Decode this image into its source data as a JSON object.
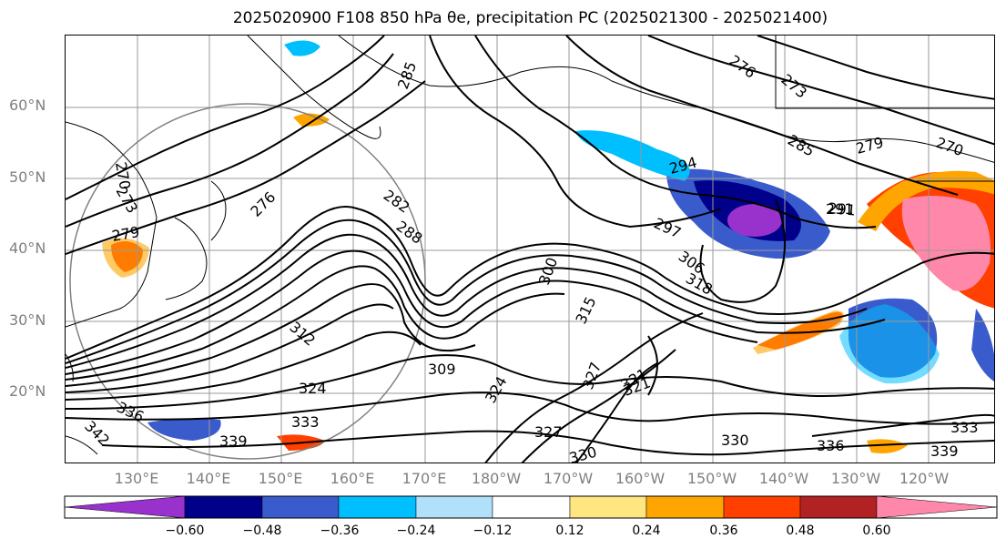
{
  "title": "2025020900 F108 850 hPa θe, precipitation PC (2025021300 - 2025021400)",
  "latitude_labels": [
    "60°N",
    "50°N",
    "40°N",
    "30°N",
    "20°N"
  ],
  "longitude_labels": [
    "130°E",
    "140°E",
    "150°E",
    "160°E",
    "170°E",
    "180°W",
    "170°W",
    "160°W",
    "150°W",
    "140°W",
    "130°W",
    "120°W"
  ],
  "contour_labels": [
    "270",
    "273",
    "276",
    "279",
    "282",
    "285",
    "288",
    "291",
    "294",
    "297",
    "300",
    "306",
    "309",
    "312",
    "315",
    "318",
    "321",
    "324",
    "327",
    "330",
    "333",
    "336",
    "339",
    "342",
    "270",
    "273",
    "276",
    "279",
    "285",
    "291",
    "321",
    "324",
    "327",
    "330",
    "333",
    "336",
    "339"
  ],
  "colorbar": {
    "tick_labels": [
      "−0.60",
      "−0.48",
      "−0.36",
      "−0.24",
      "−0.12",
      "0.12",
      "0.24",
      "0.36",
      "0.48",
      "0.60"
    ],
    "colors": [
      "#9932cc",
      "#00008b",
      "#3a5bcc",
      "#00bfff",
      "#b0e0fa",
      "#ffffff",
      "#ffe680",
      "#ffa500",
      "#ff4000",
      "#b22222",
      "#ff88aa"
    ]
  }
}
